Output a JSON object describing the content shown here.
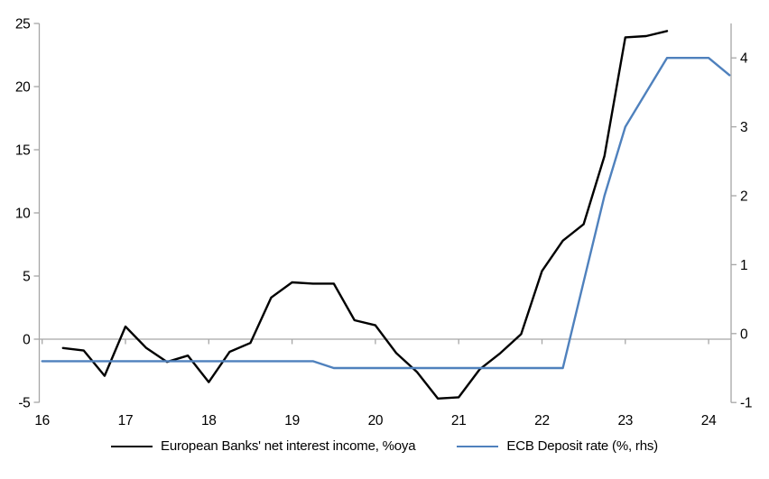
{
  "chart_data": {
    "type": "line",
    "title": "",
    "grid": "zero-line-only",
    "legend_position": "bottom-center",
    "x_axis": {
      "min": 16,
      "max": 24.25,
      "ticks": [
        16,
        17,
        18,
        19,
        20,
        21,
        22,
        23,
        24
      ]
    },
    "y_axis_left": {
      "min": -5,
      "max": 25,
      "ticks": [
        -5,
        0,
        5,
        10,
        15,
        20,
        25
      ]
    },
    "y_axis_right": {
      "min": -1,
      "max": 4.5,
      "ticks": [
        -1,
        0,
        1,
        2,
        3,
        4
      ]
    },
    "series": [
      {
        "name": "European Banks' net interest income, %oya",
        "axis": "left",
        "color": "#000000",
        "x": [
          16.25,
          16.5,
          16.75,
          17,
          17.25,
          17.5,
          17.75,
          18,
          18.25,
          18.5,
          18.75,
          19,
          19.25,
          19.5,
          19.75,
          20,
          20.25,
          20.5,
          20.75,
          21,
          21.25,
          21.5,
          21.75,
          22,
          22.25,
          22.5,
          22.75,
          23,
          23.25,
          23.5
        ],
        "values": [
          -0.7,
          -0.9,
          -2.9,
          1.0,
          -0.7,
          -1.8,
          -1.3,
          -3.4,
          -1.0,
          -0.3,
          3.3,
          4.5,
          4.4,
          4.4,
          1.5,
          1.1,
          -1.1,
          -2.6,
          -4.7,
          -4.6,
          -2.4,
          -1.1,
          0.4,
          5.4,
          7.8,
          9.1,
          14.5,
          23.9,
          24.0,
          24.4
        ]
      },
      {
        "name": "ECB Deposit rate (%, rhs)",
        "axis": "right",
        "color": "#4f81bd",
        "x": [
          16,
          16.25,
          16.5,
          16.75,
          17,
          17.25,
          17.5,
          17.75,
          18,
          18.25,
          18.5,
          18.75,
          19,
          19.25,
          19.5,
          19.75,
          20,
          20.25,
          20.5,
          20.75,
          21,
          21.25,
          21.5,
          21.75,
          22,
          22.25,
          22.5,
          22.75,
          23,
          23.25,
          23.5,
          23.75,
          24,
          24.25
        ],
        "values": [
          -0.4,
          -0.4,
          -0.4,
          -0.4,
          -0.4,
          -0.4,
          -0.4,
          -0.4,
          -0.4,
          -0.4,
          -0.4,
          -0.4,
          -0.4,
          -0.4,
          -0.5,
          -0.5,
          -0.5,
          -0.5,
          -0.5,
          -0.5,
          -0.5,
          -0.5,
          -0.5,
          -0.5,
          -0.5,
          -0.5,
          0.75,
          2.0,
          3.0,
          3.5,
          4.0,
          4.0,
          4.0,
          3.75
        ]
      }
    ]
  },
  "colors": {
    "axis_line": "#a6a6a6",
    "zero_line": "#a6a6a6",
    "text": "#000000",
    "background": "#ffffff"
  }
}
